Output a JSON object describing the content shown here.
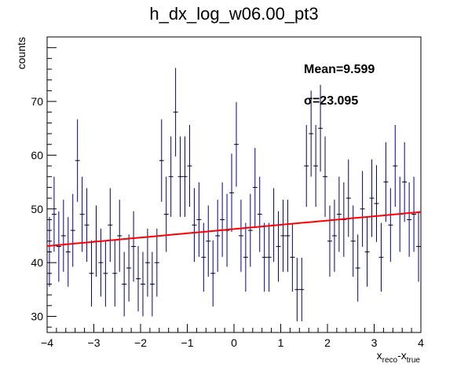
{
  "chart_data": {
    "type": "scatter",
    "title": "h_dx_log_w06.00_pt3",
    "xlabel": "x",
    "xlabel_sub1": "reco",
    "xlabel_mid": "-x",
    "xlabel_sub2": "true",
    "ylabel": "counts",
    "xlim": [
      -4,
      4
    ],
    "ylim": [
      27,
      82
    ],
    "xticks": [
      -4,
      -3,
      -2,
      -1,
      0,
      1,
      2,
      3,
      4
    ],
    "xtick_labels": [
      "−4",
      "−3",
      "−2",
      "−1",
      "0",
      "1",
      "2",
      "3",
      "4"
    ],
    "yticks": [
      30,
      40,
      50,
      60,
      70
    ],
    "ytick_labels": [
      "30",
      "40",
      "50",
      "60",
      "70"
    ],
    "bin_width": 0.1,
    "x": [
      -3.95,
      -3.85,
      -3.75,
      -3.65,
      -3.55,
      -3.45,
      -3.35,
      -3.25,
      -3.15,
      -3.05,
      -2.95,
      -2.85,
      -2.75,
      -2.65,
      -2.55,
      -2.45,
      -2.35,
      -2.25,
      -2.15,
      -2.05,
      -1.95,
      -1.85,
      -1.75,
      -1.65,
      -1.55,
      -1.45,
      -1.35,
      -1.25,
      -1.15,
      -1.05,
      -0.95,
      -0.85,
      -0.75,
      -0.65,
      -0.55,
      -0.45,
      -0.35,
      -0.25,
      -0.15,
      -0.05,
      0.05,
      0.15,
      0.25,
      0.35,
      0.45,
      0.55,
      0.65,
      0.75,
      0.85,
      0.95,
      1.05,
      1.15,
      1.25,
      1.35,
      1.45,
      1.55,
      1.65,
      1.75,
      1.85,
      1.95,
      2.05,
      2.15,
      2.25,
      2.35,
      2.45,
      2.55,
      2.65,
      2.75,
      2.85,
      2.95,
      3.05,
      3.15,
      3.25,
      3.35,
      3.45,
      3.55,
      3.65,
      3.75,
      3.85,
      3.95
    ],
    "values": [
      42,
      49,
      43,
      45,
      42,
      46,
      59,
      49,
      47,
      38,
      44,
      40,
      38,
      47,
      38,
      45,
      36,
      39,
      43,
      37,
      36,
      40,
      36,
      40,
      59,
      49,
      56,
      68,
      56,
      56,
      58,
      47,
      48,
      41,
      44,
      38,
      45,
      48,
      46,
      53,
      62,
      45,
      41,
      46,
      54,
      49,
      41,
      41,
      47,
      43,
      45,
      45,
      41,
      35,
      35,
      58,
      64,
      58,
      65,
      56,
      44,
      45,
      49,
      48,
      52,
      44,
      39,
      50,
      42,
      52,
      51,
      41,
      55,
      47,
      58,
      49,
      55,
      48,
      49,
      43
    ],
    "fit": {
      "p0": 46.25,
      "p1": 0.793,
      "color": "#ff0000"
    },
    "marker_color": "#00007f",
    "stats": [
      {
        "text": "Mean=9.599"
      },
      {
        "text": "σ=23.095"
      }
    ],
    "grid": false,
    "legend": "none"
  }
}
